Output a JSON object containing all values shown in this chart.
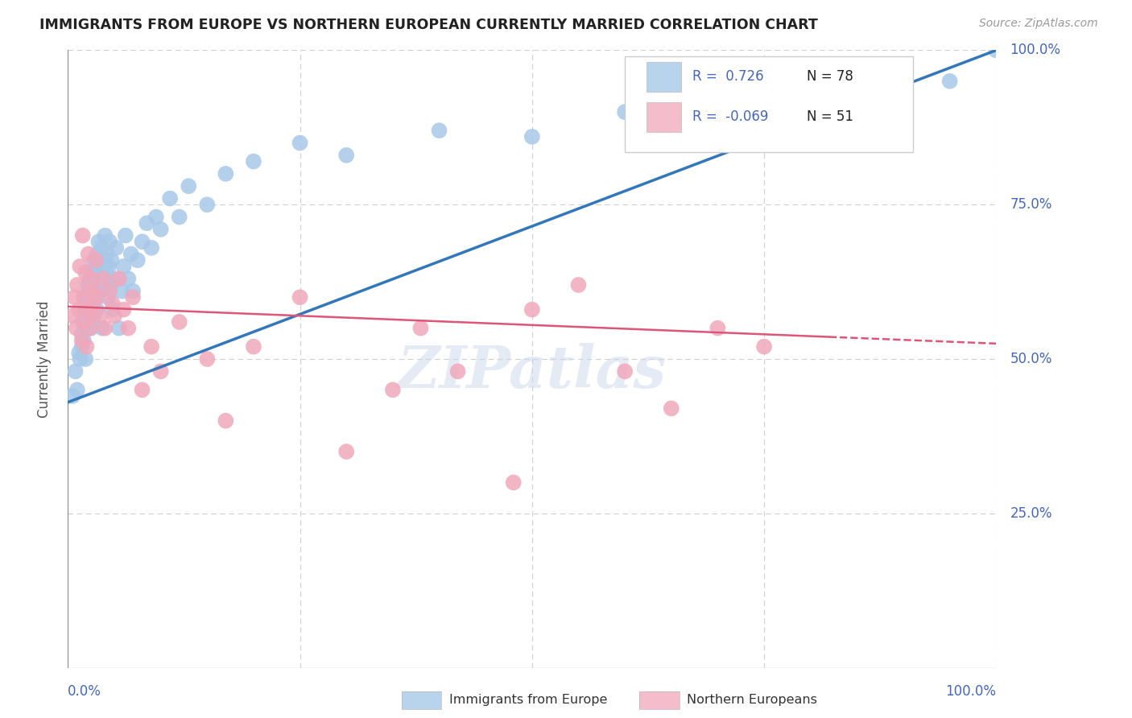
{
  "title": "IMMIGRANTS FROM EUROPE VS NORTHERN EUROPEAN CURRENTLY MARRIED CORRELATION CHART",
  "source": "Source: ZipAtlas.com",
  "ylabel": "Currently Married",
  "blue_R": 0.726,
  "blue_N": 78,
  "pink_R": -0.069,
  "pink_N": 51,
  "blue_color": "#a8c8e8",
  "pink_color": "#f0a8bc",
  "blue_line_color": "#3377bb",
  "pink_line_color": "#dd5577",
  "blue_legend_color": "#b8d4ec",
  "pink_legend_color": "#f5bccb",
  "text_color": "#4466bb",
  "grid_color": "#d0d0d0",
  "background_color": "#ffffff",
  "watermark": "ZIPatlas",
  "blue_scatter_x": [
    0.005,
    0.008,
    0.01,
    0.012,
    0.013,
    0.015,
    0.015,
    0.016,
    0.017,
    0.018,
    0.019,
    0.02,
    0.02,
    0.021,
    0.022,
    0.023,
    0.024,
    0.025,
    0.025,
    0.026,
    0.027,
    0.028,
    0.028,
    0.029,
    0.03,
    0.03,
    0.031,
    0.032,
    0.033,
    0.033,
    0.034,
    0.035,
    0.036,
    0.037,
    0.038,
    0.039,
    0.04,
    0.041,
    0.042,
    0.043,
    0.044,
    0.045,
    0.046,
    0.047,
    0.048,
    0.05,
    0.052,
    0.055,
    0.058,
    0.06,
    0.062,
    0.065,
    0.068,
    0.07,
    0.075,
    0.08,
    0.085,
    0.09,
    0.095,
    0.1,
    0.11,
    0.12,
    0.13,
    0.15,
    0.17,
    0.2,
    0.25,
    0.3,
    0.4,
    0.5,
    0.6,
    0.7,
    0.75,
    0.8,
    0.85,
    0.9,
    0.95,
    1.0
  ],
  "blue_scatter_y": [
    0.44,
    0.48,
    0.45,
    0.51,
    0.5,
    0.52,
    0.54,
    0.56,
    0.53,
    0.58,
    0.5,
    0.55,
    0.6,
    0.57,
    0.62,
    0.58,
    0.63,
    0.55,
    0.59,
    0.61,
    0.64,
    0.57,
    0.66,
    0.6,
    0.62,
    0.65,
    0.58,
    0.67,
    0.63,
    0.69,
    0.61,
    0.64,
    0.68,
    0.55,
    0.63,
    0.66,
    0.7,
    0.64,
    0.67,
    0.6,
    0.65,
    0.69,
    0.62,
    0.66,
    0.58,
    0.63,
    0.68,
    0.55,
    0.61,
    0.65,
    0.7,
    0.63,
    0.67,
    0.61,
    0.66,
    0.69,
    0.72,
    0.68,
    0.73,
    0.71,
    0.76,
    0.73,
    0.78,
    0.75,
    0.8,
    0.82,
    0.85,
    0.83,
    0.87,
    0.86,
    0.9,
    0.91,
    0.87,
    0.93,
    0.92,
    0.95,
    0.95,
    1.0
  ],
  "pink_scatter_x": [
    0.005,
    0.007,
    0.009,
    0.01,
    0.012,
    0.013,
    0.015,
    0.016,
    0.017,
    0.018,
    0.019,
    0.02,
    0.021,
    0.022,
    0.023,
    0.024,
    0.025,
    0.026,
    0.027,
    0.028,
    0.03,
    0.032,
    0.035,
    0.038,
    0.04,
    0.045,
    0.048,
    0.05,
    0.055,
    0.06,
    0.065,
    0.07,
    0.08,
    0.09,
    0.1,
    0.12,
    0.15,
    0.17,
    0.2,
    0.25,
    0.3,
    0.35,
    0.38,
    0.42,
    0.48,
    0.5,
    0.55,
    0.6,
    0.65,
    0.7,
    0.75
  ],
  "pink_scatter_y": [
    0.57,
    0.6,
    0.55,
    0.62,
    0.58,
    0.65,
    0.53,
    0.7,
    0.6,
    0.56,
    0.64,
    0.52,
    0.58,
    0.67,
    0.61,
    0.55,
    0.63,
    0.57,
    0.59,
    0.61,
    0.66,
    0.6,
    0.57,
    0.63,
    0.55,
    0.61,
    0.59,
    0.57,
    0.63,
    0.58,
    0.55,
    0.6,
    0.45,
    0.52,
    0.48,
    0.56,
    0.5,
    0.4,
    0.52,
    0.6,
    0.35,
    0.45,
    0.55,
    0.48,
    0.3,
    0.58,
    0.62,
    0.48,
    0.42,
    0.55,
    0.52
  ],
  "xlim": [
    0.0,
    1.0
  ],
  "ylim": [
    0.0,
    1.0
  ],
  "blue_trend_x0": 0.0,
  "blue_trend_y0": 0.43,
  "blue_trend_x1": 1.0,
  "blue_trend_y1": 1.0,
  "pink_trend_x0": 0.0,
  "pink_trend_y0": 0.585,
  "pink_trend_x1": 1.0,
  "pink_trend_y1": 0.525
}
